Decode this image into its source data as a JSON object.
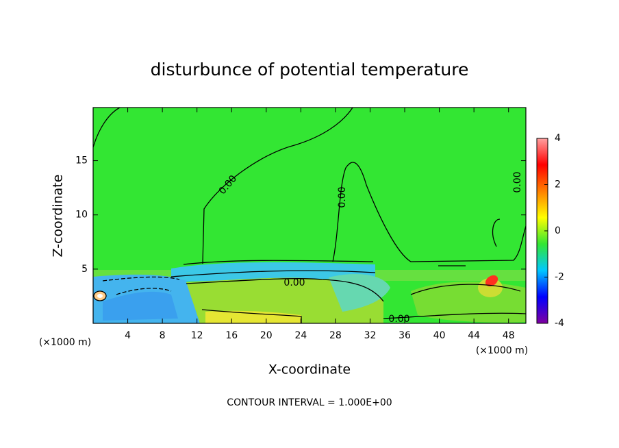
{
  "chart_data": {
    "type": "contour",
    "title": "disturbunce of potential temperature",
    "x_label": "X-coordinate",
    "y_label": "Z-coordinate",
    "x_unit_label": "(×1000 m)",
    "footnote": "CONTOUR INTERVAL = 1.000E+00",
    "xlim": [
      0,
      50
    ],
    "xticks": [
      4,
      8,
      12,
      16,
      20,
      24,
      28,
      32,
      36,
      40,
      44,
      48
    ],
    "ylim": [
      0,
      19.9
    ],
    "yticks": [
      5,
      10,
      15
    ],
    "contour_labels": [
      "0.00",
      "0.00",
      "0.00",
      "0.00",
      "0.00"
    ],
    "colorbar": {
      "lim": [
        -4,
        4
      ],
      "ticks": [
        -4,
        -2,
        0,
        2,
        4
      ],
      "colormap": [
        "#8000a0",
        "#0000ff",
        "#00c8ff",
        "#33e633",
        "#ffff00",
        "#ff8000",
        "#ff0000",
        "#ffa0a0"
      ]
    }
  }
}
